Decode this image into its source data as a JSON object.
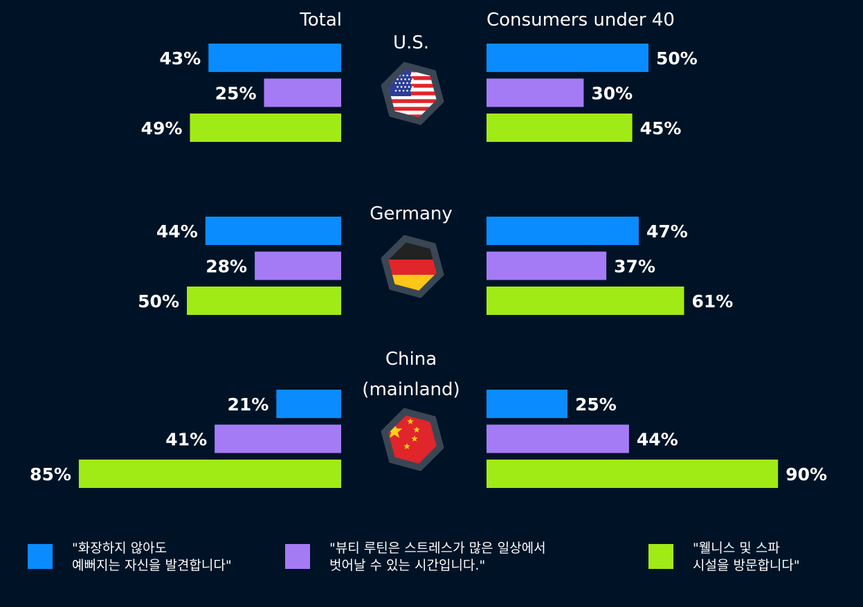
{
  "chart_data": {
    "type": "bar",
    "orientation": "horizontal",
    "panels": [
      "Total",
      "Consumers under 40"
    ],
    "groups": [
      {
        "name": "U.S.",
        "flag": "us-flag-icon",
        "total": [
          43,
          25,
          49
        ],
        "under40": [
          50,
          30,
          45
        ]
      },
      {
        "name": "Germany",
        "flag": "germany-flag-icon",
        "total": [
          44,
          28,
          50
        ],
        "under40": [
          47,
          37,
          61
        ]
      },
      {
        "name": "China\n(mainland)",
        "flag": "china-flag-icon",
        "total": [
          21,
          41,
          85
        ],
        "under40": [
          25,
          44,
          90
        ]
      }
    ],
    "series": [
      {
        "name": "\"화장하지 않아도\n예뻐지는 자신을 발견합니다\"",
        "color": "#0a8cff"
      },
      {
        "name": "\"뷰티 루틴은 스트레스가 많은 일상에서\n벗어날 수 있는 시간입니다.\"",
        "color": "#a57bf5"
      },
      {
        "name": "\"웰니스 및 스파\n시설을 방문합니다\"",
        "color": "#a0eb16"
      }
    ],
    "unit": "%",
    "xlim": [
      0,
      100
    ],
    "grid": false,
    "legend": "bottom"
  }
}
